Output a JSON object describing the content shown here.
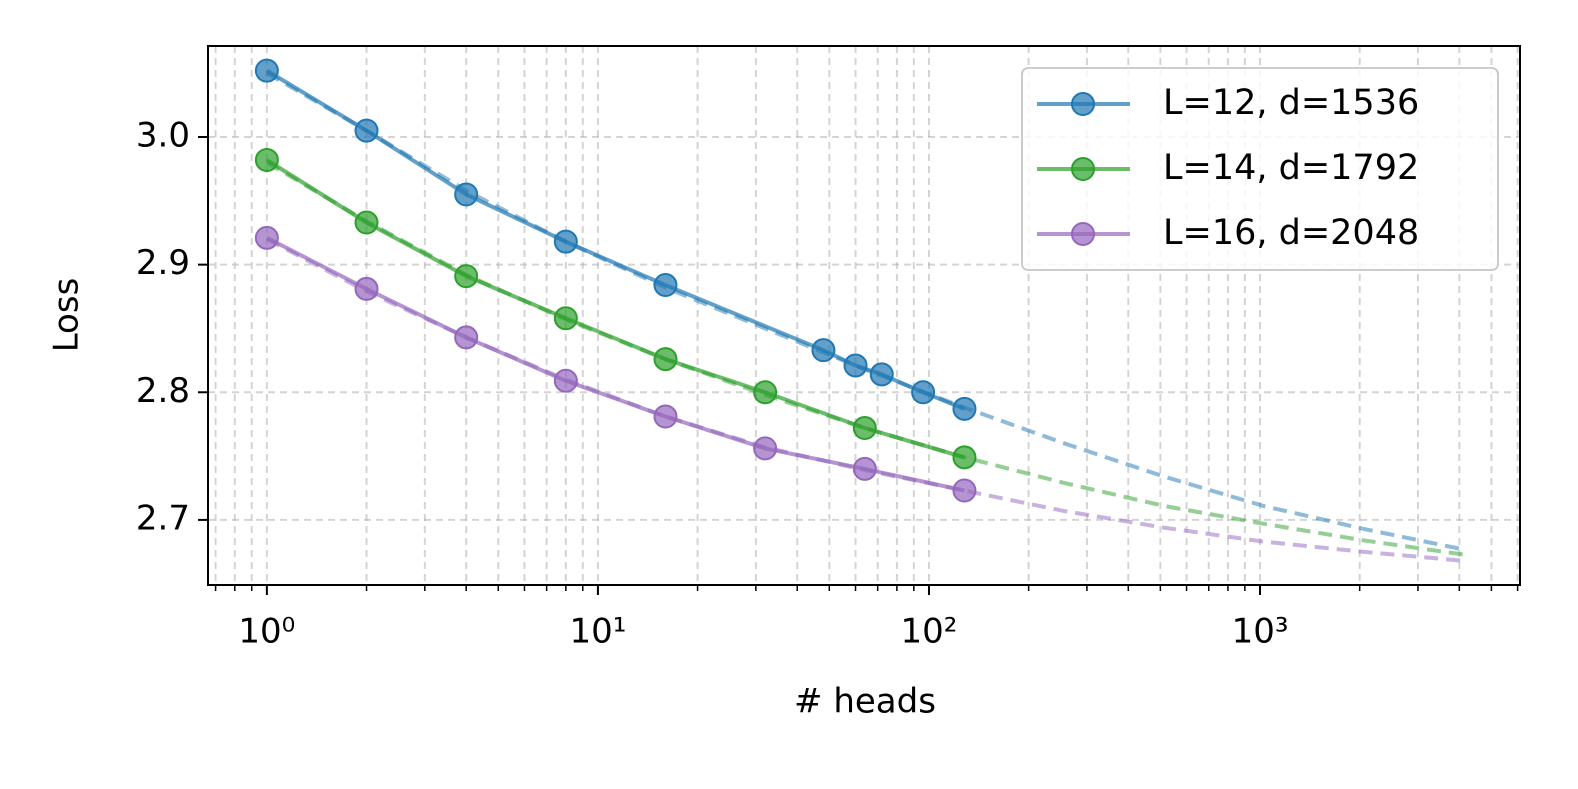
{
  "chart_data": {
    "type": "line",
    "x_label": "# heads",
    "y_label": "Loss",
    "log_x": true,
    "grid": true,
    "legend": "upper right",
    "xlim": [
      0.664,
      6100
    ],
    "ylim": [
      2.649,
      3.0713
    ],
    "xticks": [
      {
        "value": 1,
        "label": "10⁰"
      },
      {
        "value": 10,
        "label": "10¹"
      },
      {
        "value": 100,
        "label": "10²"
      },
      {
        "value": 1000,
        "label": "10³"
      }
    ],
    "xminorticks": [
      0.7,
      0.8,
      0.9,
      2,
      3,
      4,
      5,
      6,
      7,
      8,
      9,
      20,
      30,
      40,
      50,
      60,
      70,
      80,
      90,
      200,
      300,
      400,
      500,
      600,
      700,
      800,
      900,
      2000,
      3000,
      4000,
      5000,
      6000
    ],
    "yticks": [
      2.7,
      2.8,
      2.9,
      {
        "value": 3,
        "label": "3.0"
      }
    ],
    "series": [
      {
        "name": "L=12, d=1536",
        "color": "#1f77b4",
        "x": [
          1,
          2,
          4,
          8,
          16,
          48,
          60,
          72,
          96,
          128
        ],
        "values": [
          3.052,
          3.005,
          2.955,
          2.918,
          2.884,
          2.833,
          2.821,
          2.814,
          2.8,
          2.787
        ]
      },
      {
        "name": "L=14, d=1792",
        "color": "#2ca02c",
        "x": [
          1,
          2,
          4,
          8,
          16,
          32,
          64,
          128
        ],
        "values": [
          2.982,
          2.933,
          2.891,
          2.858,
          2.826,
          2.8,
          2.772,
          2.749
        ]
      },
      {
        "name": "L=16, d=2048",
        "color": "#9467bd",
        "x": [
          1,
          2,
          4,
          8,
          16,
          32,
          64,
          128
        ],
        "values": [
          2.921,
          2.881,
          2.843,
          2.809,
          2.781,
          2.756,
          2.74,
          2.723
        ]
      }
    ],
    "fits": [
      {
        "color": "#1f77b4",
        "x": [
          1,
          2,
          4,
          8,
          16,
          32,
          64,
          128,
          256,
          512,
          1024,
          2048,
          4096
        ],
        "values": [
          3.05,
          3.005,
          2.958,
          2.918,
          2.882,
          2.85,
          2.818,
          2.788,
          2.76,
          2.734,
          2.711,
          2.693,
          2.677
        ]
      },
      {
        "color": "#2ca02c",
        "x": [
          1,
          2,
          4,
          8,
          16,
          32,
          64,
          128,
          256,
          512,
          1024,
          2048,
          4096
        ],
        "values": [
          2.98,
          2.934,
          2.892,
          2.857,
          2.826,
          2.798,
          2.772,
          2.749,
          2.729,
          2.711,
          2.697,
          2.684,
          2.673
        ]
      },
      {
        "color": "#9467bd",
        "x": [
          1,
          2,
          4,
          8,
          16,
          32,
          64,
          128,
          256,
          512,
          1024,
          2048,
          4096
        ],
        "values": [
          2.92,
          2.879,
          2.843,
          2.81,
          2.781,
          2.757,
          2.739,
          2.723,
          2.707,
          2.694,
          2.683,
          2.675,
          2.668
        ]
      }
    ]
  }
}
